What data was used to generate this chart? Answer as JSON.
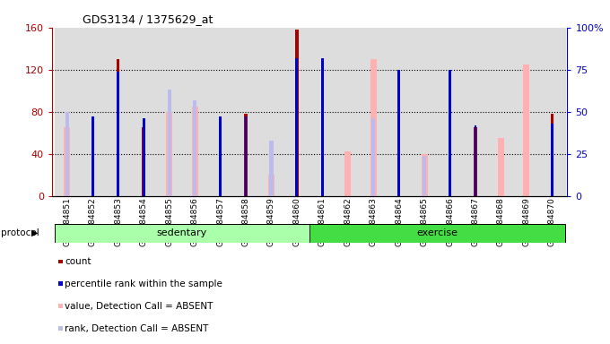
{
  "title": "GDS3134 / 1375629_at",
  "samples": [
    "GSM184851",
    "GSM184852",
    "GSM184853",
    "GSM184854",
    "GSM184855",
    "GSM184856",
    "GSM184857",
    "GSM184858",
    "GSM184859",
    "GSM184860",
    "GSM184861",
    "GSM184862",
    "GSM184863",
    "GSM184864",
    "GSM184865",
    "GSM184866",
    "GSM184867",
    "GSM184868",
    "GSM184869",
    "GSM184870"
  ],
  "protocol_groups": [
    {
      "label": "sedentary",
      "start": 0,
      "end": 9,
      "color": "#AAFFAA"
    },
    {
      "label": "exercise",
      "start": 10,
      "end": 19,
      "color": "#44DD44"
    }
  ],
  "count": [
    0,
    75,
    130,
    65,
    0,
    0,
    75,
    78,
    0,
    158,
    90,
    0,
    0,
    100,
    0,
    110,
    65,
    0,
    0,
    78
  ],
  "rank": [
    0,
    47,
    74,
    46,
    0,
    0,
    47,
    47,
    0,
    82,
    82,
    0,
    0,
    75,
    0,
    75,
    42,
    0,
    0,
    43
  ],
  "value_absent": [
    65,
    0,
    0,
    0,
    80,
    85,
    0,
    0,
    20,
    0,
    0,
    42,
    130,
    0,
    40,
    0,
    0,
    55,
    125,
    0
  ],
  "rank_absent": [
    50,
    0,
    0,
    0,
    63,
    57,
    0,
    0,
    33,
    0,
    0,
    0,
    46,
    0,
    24,
    0,
    0,
    0,
    0,
    0
  ],
  "colors": {
    "count": "#AA0000",
    "rank": "#0000CC",
    "value_absent": "#FFB0B0",
    "rank_absent": "#BBBBEE",
    "axis_left": "#AA0000",
    "axis_right": "#0000CC"
  },
  "ylim_left": [
    0,
    160
  ],
  "ylim_right": [
    0,
    100
  ],
  "yticks_left": [
    0,
    40,
    80,
    120,
    160
  ],
  "yticks_right": [
    0,
    25,
    50,
    75,
    100
  ]
}
